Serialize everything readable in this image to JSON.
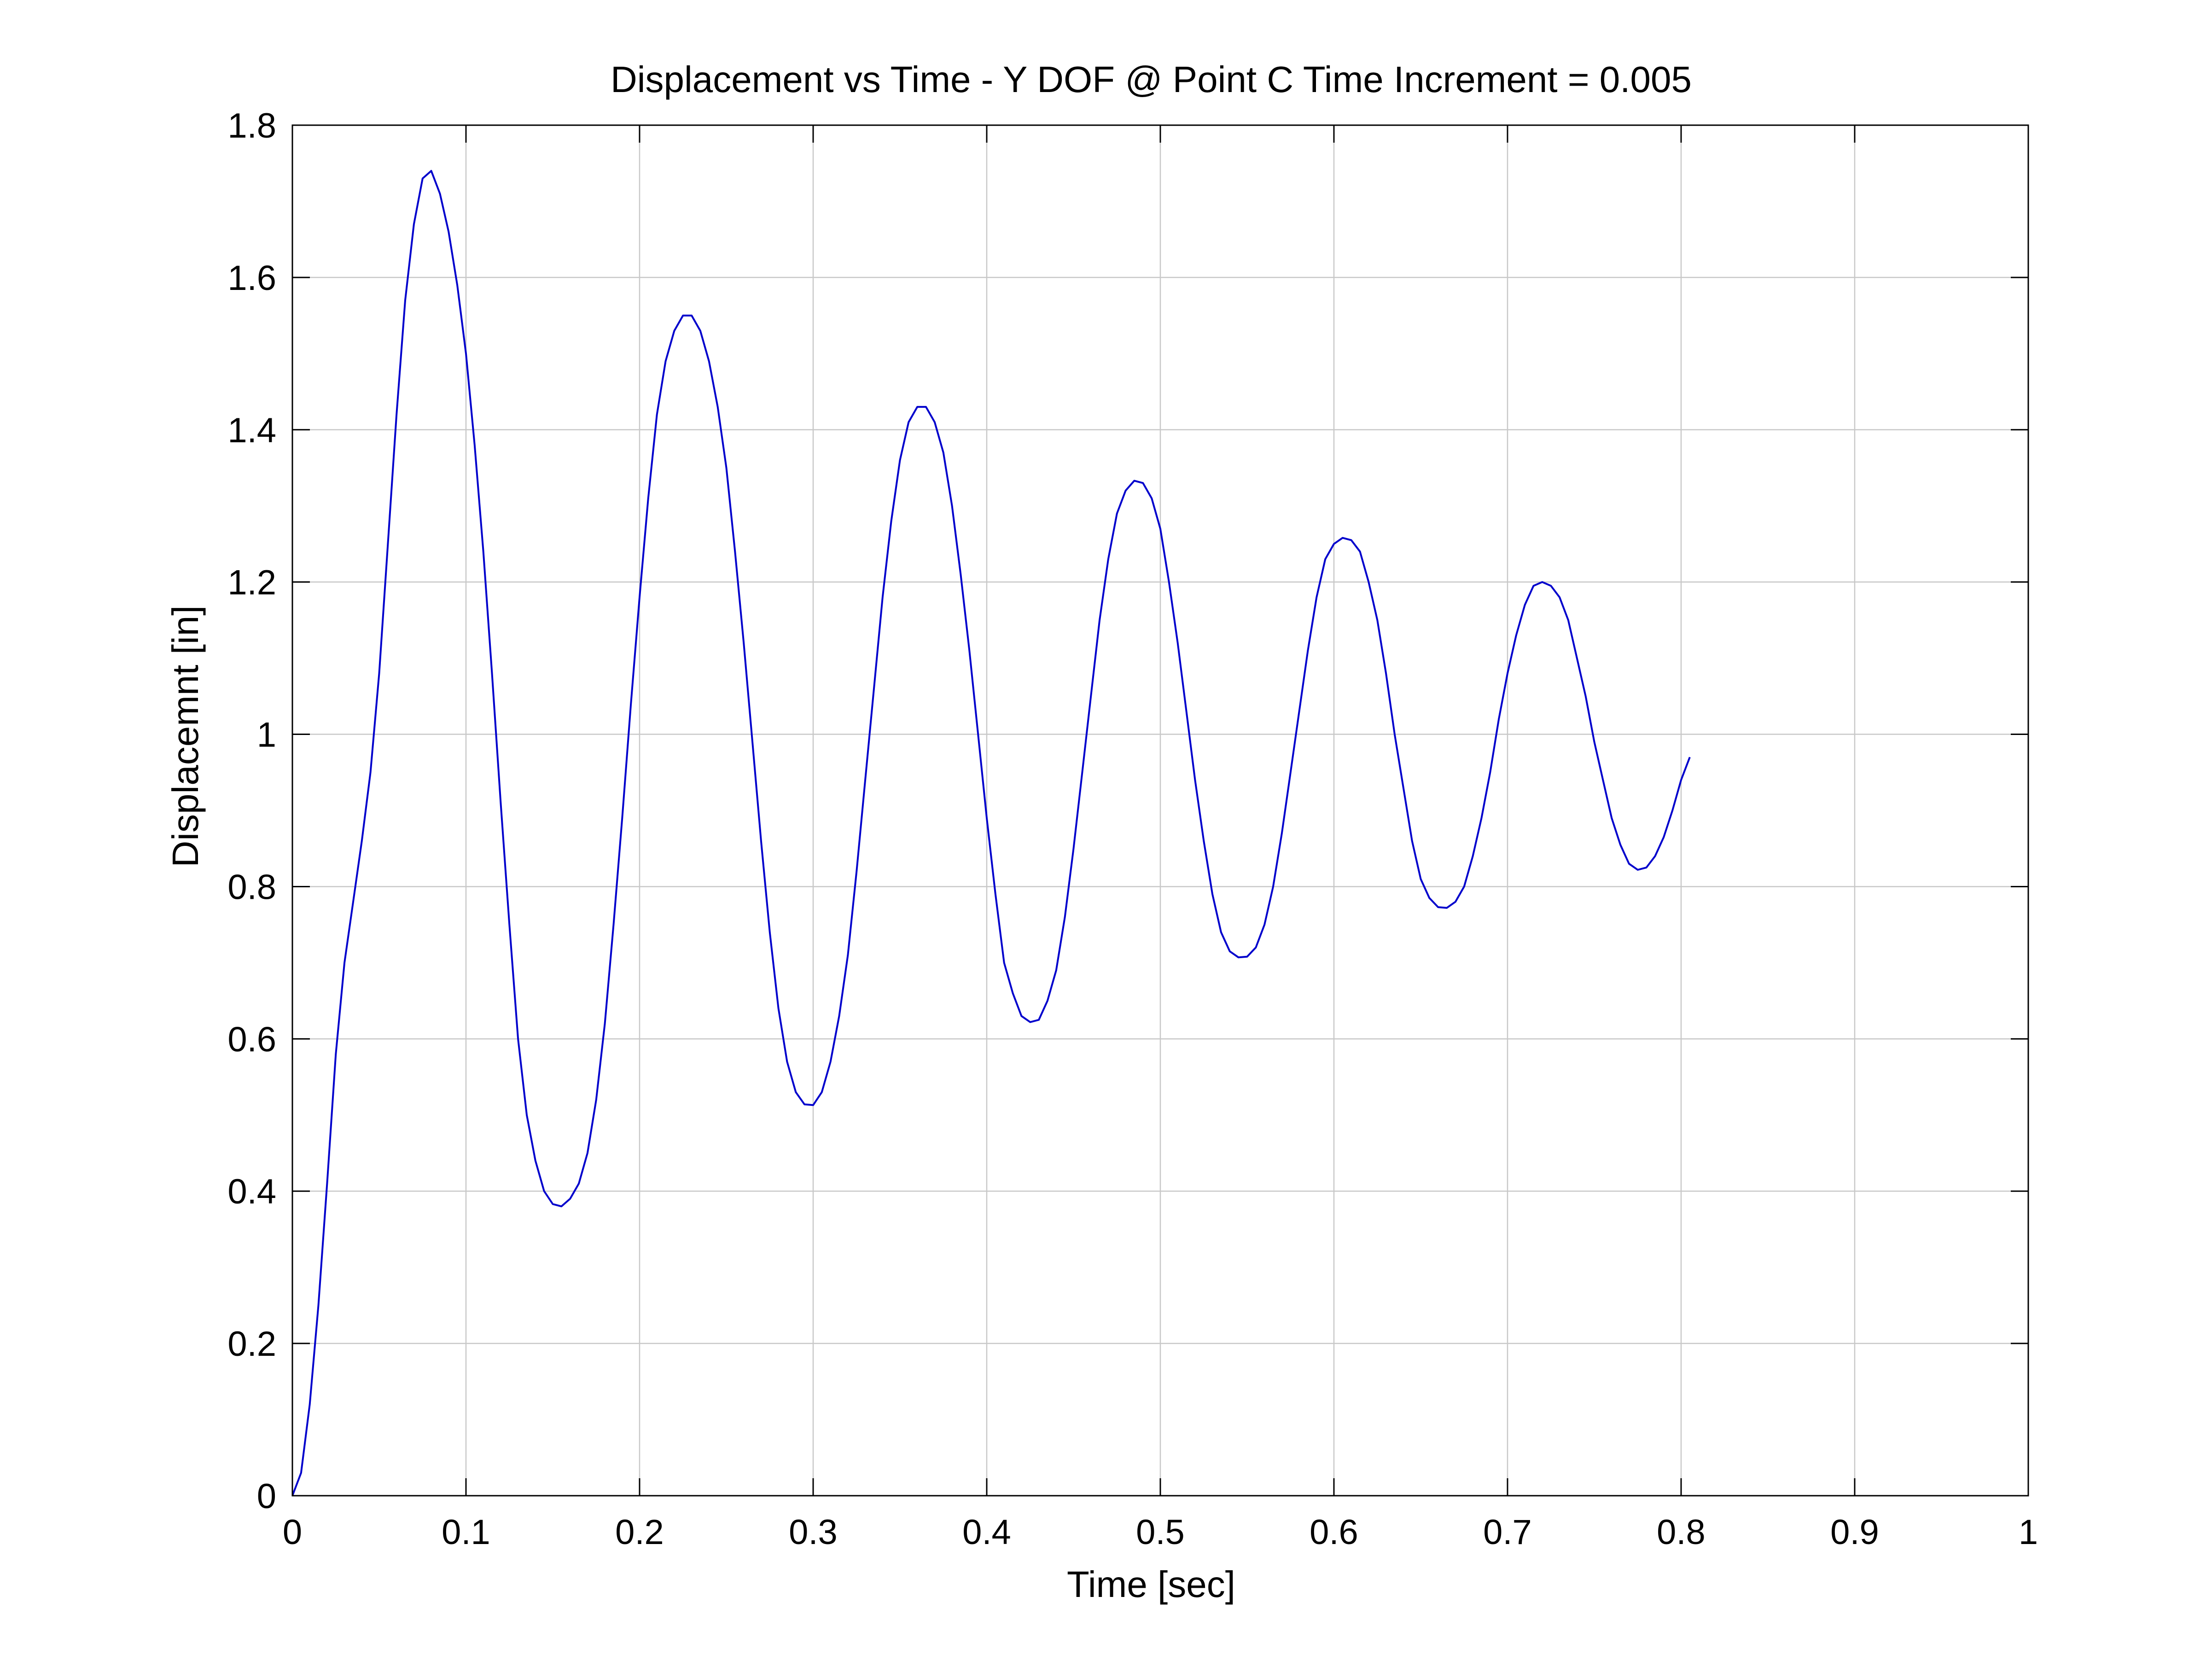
{
  "chart_data": {
    "type": "line",
    "title": "Displacement vs Time - Y DOF @ Point C    Time Increment = 0.005",
    "xlabel": "Time [sec]",
    "ylabel": "Displacemnt [in]",
    "xlim": [
      0,
      1
    ],
    "ylim": [
      0,
      1.8
    ],
    "x_ticks": [
      0,
      0.1,
      0.2,
      0.3,
      0.4,
      0.5,
      0.6,
      0.7,
      0.8,
      0.9,
      1
    ],
    "x_tick_labels": [
      "0",
      "0.1",
      "0.2",
      "0.3",
      "0.4",
      "0.5",
      "0.6",
      "0.7",
      "0.8",
      "0.9",
      "1"
    ],
    "y_ticks": [
      0,
      0.2,
      0.4,
      0.6,
      0.8,
      1,
      1.2,
      1.4,
      1.6,
      1.8
    ],
    "y_tick_labels": [
      "0",
      "0.2",
      "0.4",
      "0.6",
      "0.8",
      "1",
      "1.2",
      "1.4",
      "1.6",
      "1.8"
    ],
    "grid": true,
    "legend": "none",
    "series": [
      {
        "color": "#0000cc",
        "points": [
          [
            0,
            0
          ],
          [
            0.005,
            0.03
          ],
          [
            0.01,
            0.12
          ],
          [
            0.015,
            0.25
          ],
          [
            0.02,
            0.41
          ],
          [
            0.025,
            0.58
          ],
          [
            0.03,
            0.7
          ],
          [
            0.035,
            0.78
          ],
          [
            0.04,
            0.86
          ],
          [
            0.045,
            0.95
          ],
          [
            0.05,
            1.08
          ],
          [
            0.055,
            1.25
          ],
          [
            0.06,
            1.42
          ],
          [
            0.065,
            1.57
          ],
          [
            0.07,
            1.67
          ],
          [
            0.075,
            1.73
          ],
          [
            0.08,
            1.74
          ],
          [
            0.085,
            1.71
          ],
          [
            0.09,
            1.66
          ],
          [
            0.095,
            1.59
          ],
          [
            0.1,
            1.5
          ],
          [
            0.105,
            1.38
          ],
          [
            0.11,
            1.24
          ],
          [
            0.115,
            1.08
          ],
          [
            0.12,
            0.91
          ],
          [
            0.125,
            0.75
          ],
          [
            0.13,
            0.6
          ],
          [
            0.135,
            0.5
          ],
          [
            0.14,
            0.44
          ],
          [
            0.145,
            0.4
          ],
          [
            0.15,
            0.383
          ],
          [
            0.155,
            0.38
          ],
          [
            0.16,
            0.39
          ],
          [
            0.165,
            0.41
          ],
          [
            0.17,
            0.45
          ],
          [
            0.175,
            0.52
          ],
          [
            0.18,
            0.62
          ],
          [
            0.185,
            0.75
          ],
          [
            0.19,
            0.89
          ],
          [
            0.195,
            1.04
          ],
          [
            0.2,
            1.18
          ],
          [
            0.205,
            1.31
          ],
          [
            0.21,
            1.42
          ],
          [
            0.215,
            1.49
          ],
          [
            0.22,
            1.53
          ],
          [
            0.225,
            1.55
          ],
          [
            0.23,
            1.55
          ],
          [
            0.235,
            1.53
          ],
          [
            0.24,
            1.49
          ],
          [
            0.245,
            1.43
          ],
          [
            0.25,
            1.35
          ],
          [
            0.255,
            1.24
          ],
          [
            0.26,
            1.12
          ],
          [
            0.265,
            0.99
          ],
          [
            0.27,
            0.86
          ],
          [
            0.275,
            0.74
          ],
          [
            0.28,
            0.64
          ],
          [
            0.285,
            0.57
          ],
          [
            0.29,
            0.53
          ],
          [
            0.295,
            0.514
          ],
          [
            0.3,
            0.513
          ],
          [
            0.305,
            0.53
          ],
          [
            0.31,
            0.57
          ],
          [
            0.315,
            0.63
          ],
          [
            0.32,
            0.71
          ],
          [
            0.325,
            0.82
          ],
          [
            0.33,
            0.94
          ],
          [
            0.335,
            1.06
          ],
          [
            0.34,
            1.18
          ],
          [
            0.345,
            1.28
          ],
          [
            0.35,
            1.36
          ],
          [
            0.355,
            1.41
          ],
          [
            0.36,
            1.43
          ],
          [
            0.365,
            1.43
          ],
          [
            0.37,
            1.41
          ],
          [
            0.375,
            1.37
          ],
          [
            0.38,
            1.3
          ],
          [
            0.385,
            1.21
          ],
          [
            0.39,
            1.11
          ],
          [
            0.395,
            1.0
          ],
          [
            0.4,
            0.89
          ],
          [
            0.405,
            0.79
          ],
          [
            0.41,
            0.7
          ],
          [
            0.415,
            0.66
          ],
          [
            0.42,
            0.63
          ],
          [
            0.425,
            0.622
          ],
          [
            0.43,
            0.625
          ],
          [
            0.435,
            0.65
          ],
          [
            0.44,
            0.69
          ],
          [
            0.445,
            0.76
          ],
          [
            0.45,
            0.85
          ],
          [
            0.455,
            0.95
          ],
          [
            0.46,
            1.05
          ],
          [
            0.465,
            1.15
          ],
          [
            0.47,
            1.23
          ],
          [
            0.475,
            1.29
          ],
          [
            0.48,
            1.32
          ],
          [
            0.485,
            1.333
          ],
          [
            0.49,
            1.33
          ],
          [
            0.495,
            1.31
          ],
          [
            0.5,
            1.27
          ],
          [
            0.505,
            1.2
          ],
          [
            0.51,
            1.12
          ],
          [
            0.515,
            1.03
          ],
          [
            0.52,
            0.94
          ],
          [
            0.525,
            0.86
          ],
          [
            0.53,
            0.79
          ],
          [
            0.535,
            0.74
          ],
          [
            0.54,
            0.715
          ],
          [
            0.545,
            0.707
          ],
          [
            0.55,
            0.708
          ],
          [
            0.555,
            0.72
          ],
          [
            0.56,
            0.75
          ],
          [
            0.565,
            0.8
          ],
          [
            0.57,
            0.87
          ],
          [
            0.575,
            0.95
          ],
          [
            0.58,
            1.03
          ],
          [
            0.585,
            1.11
          ],
          [
            0.59,
            1.18
          ],
          [
            0.595,
            1.23
          ],
          [
            0.6,
            1.25
          ],
          [
            0.605,
            1.258
          ],
          [
            0.61,
            1.255
          ],
          [
            0.615,
            1.24
          ],
          [
            0.62,
            1.2
          ],
          [
            0.625,
            1.15
          ],
          [
            0.63,
            1.08
          ],
          [
            0.635,
            1.0
          ],
          [
            0.64,
            0.93
          ],
          [
            0.645,
            0.86
          ],
          [
            0.65,
            0.81
          ],
          [
            0.655,
            0.785
          ],
          [
            0.66,
            0.773
          ],
          [
            0.665,
            0.772
          ],
          [
            0.67,
            0.78
          ],
          [
            0.675,
            0.8
          ],
          [
            0.68,
            0.84
          ],
          [
            0.685,
            0.89
          ],
          [
            0.69,
            0.95
          ],
          [
            0.695,
            1.02
          ],
          [
            0.7,
            1.08
          ],
          [
            0.705,
            1.13
          ],
          [
            0.71,
            1.17
          ],
          [
            0.715,
            1.195
          ],
          [
            0.72,
            1.2
          ],
          [
            0.725,
            1.195
          ],
          [
            0.73,
            1.18
          ],
          [
            0.735,
            1.15
          ],
          [
            0.74,
            1.1
          ],
          [
            0.745,
            1.05
          ],
          [
            0.75,
            0.99
          ],
          [
            0.755,
            0.94
          ],
          [
            0.76,
            0.89
          ],
          [
            0.765,
            0.855
          ],
          [
            0.77,
            0.83
          ],
          [
            0.775,
            0.822
          ],
          [
            0.78,
            0.825
          ],
          [
            0.785,
            0.84
          ],
          [
            0.79,
            0.865
          ],
          [
            0.795,
            0.9
          ],
          [
            0.8,
            0.94
          ],
          [
            0.805,
            0.97
          ]
        ]
      }
    ]
  }
}
